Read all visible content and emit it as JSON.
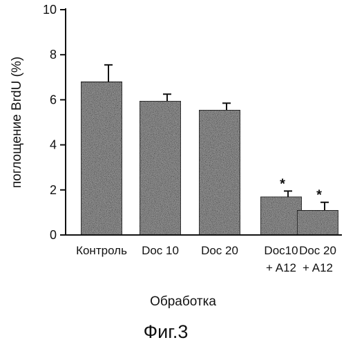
{
  "chart_data": {
    "type": "bar",
    "categories": [
      [
        "Контроль"
      ],
      [
        "Doc 10"
      ],
      [
        "Doc 20"
      ],
      [
        "Doc10",
        "+ A12"
      ],
      [
        "Doc 20",
        "+ A12"
      ]
    ],
    "values": [
      6.8,
      5.95,
      5.55,
      1.7,
      1.1
    ],
    "errors": [
      0.75,
      0.3,
      0.3,
      0.25,
      0.35
    ],
    "significance": [
      "",
      "",
      "",
      "*",
      "*"
    ],
    "ylim": [
      0,
      10
    ],
    "yticks": [
      "0",
      "2",
      "4",
      "6",
      "8",
      "10"
    ],
    "ylabel": "поглощение BrdU (%)",
    "xlabel": "Обработка",
    "caption": "Фиг.3",
    "colors": {
      "bar_fill": "#8c8c8c",
      "bar_stroke": "#1a1a1a",
      "axis": "#111111"
    }
  }
}
